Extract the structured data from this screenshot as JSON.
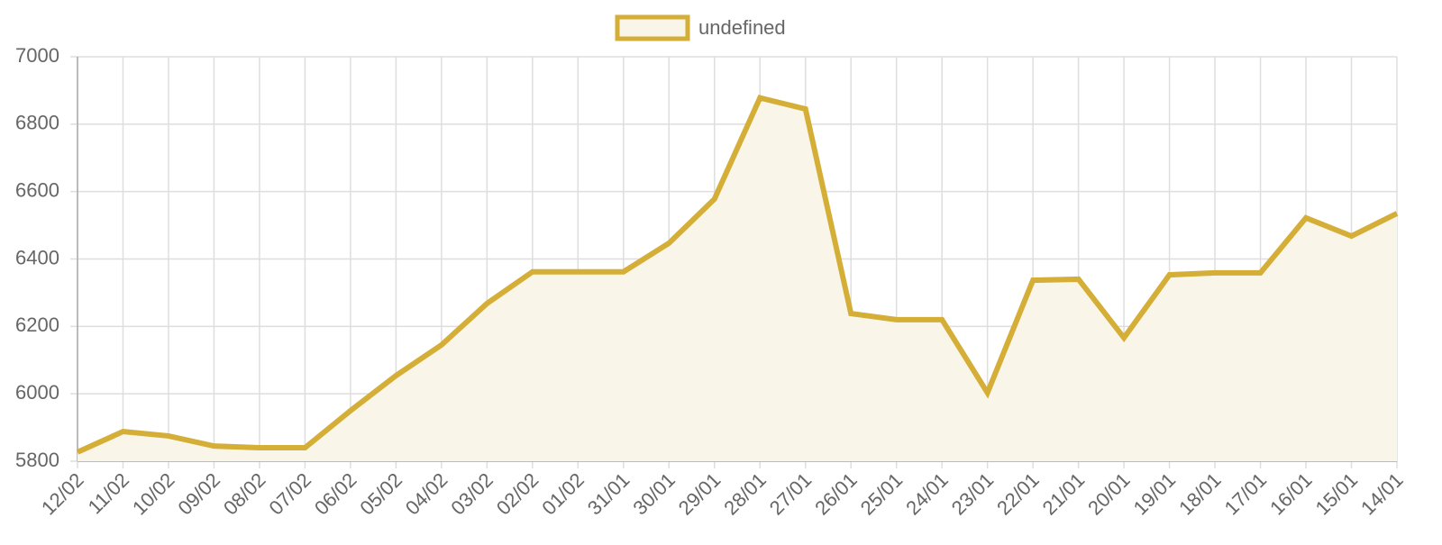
{
  "chart_data": {
    "type": "line",
    "categories": [
      "12/02",
      "11/02",
      "10/02",
      "09/02",
      "08/02",
      "07/02",
      "06/02",
      "05/02",
      "04/02",
      "03/02",
      "02/02",
      "01/02",
      "31/01",
      "30/01",
      "29/01",
      "28/01",
      "27/01",
      "26/01",
      "25/01",
      "24/01",
      "23/01",
      "22/01",
      "21/01",
      "20/01",
      "19/01",
      "18/01",
      "17/01",
      "16/01",
      "15/01",
      "14/01"
    ],
    "series": [
      {
        "name": "undefined",
        "color": "#d4ae37",
        "fill_color": "#f9f6e9",
        "values": [
          5827,
          5888,
          5875,
          5845,
          5840,
          5840,
          5950,
          6054,
          6145,
          6268,
          6362,
          6362,
          6362,
          6447,
          6578,
          6878,
          6845,
          6238,
          6220,
          6220,
          6003,
          6337,
          6340,
          6166,
          6353,
          6359,
          6359,
          6522,
          6468,
          6535
        ]
      }
    ],
    "ylim": [
      5800,
      7000
    ],
    "yticks": [
      5800,
      6000,
      6200,
      6400,
      6600,
      6800,
      7000
    ],
    "grid": true,
    "legend": "top"
  }
}
